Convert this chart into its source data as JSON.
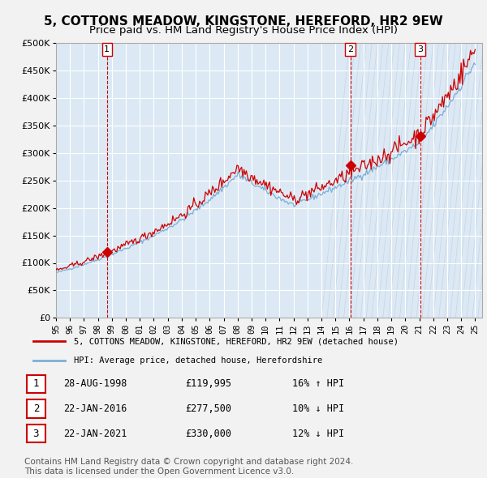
{
  "title": "5, COTTONS MEADOW, KINGSTONE, HEREFORD, HR2 9EW",
  "subtitle": "Price paid vs. HM Land Registry's House Price Index (HPI)",
  "title_fontsize": 11,
  "subtitle_fontsize": 9.5,
  "bg_color": "#dce9f5",
  "grid_color": "#ffffff",
  "red_line_color": "#cc0000",
  "blue_line_color": "#7bafd4",
  "sale_marker_color": "#cc0000",
  "vline_color": "#cc0000",
  "ylim": [
    0,
    500000
  ],
  "yticks": [
    0,
    50000,
    100000,
    150000,
    200000,
    250000,
    300000,
    350000,
    400000,
    450000,
    500000
  ],
  "ytick_labels": [
    "£0",
    "£50K",
    "£100K",
    "£150K",
    "£200K",
    "£250K",
    "£300K",
    "£350K",
    "£400K",
    "£450K",
    "£500K"
  ],
  "xmin": 1995.0,
  "xmax": 2025.5,
  "xtick_years": [
    1995,
    1996,
    1997,
    1998,
    1999,
    2000,
    2001,
    2002,
    2003,
    2004,
    2005,
    2006,
    2007,
    2008,
    2009,
    2010,
    2011,
    2012,
    2013,
    2014,
    2015,
    2016,
    2017,
    2018,
    2019,
    2020,
    2021,
    2022,
    2023,
    2024,
    2025
  ],
  "sale_dates": [
    1998.65,
    2016.06,
    2021.06
  ],
  "sale_prices": [
    119995,
    277500,
    330000
  ],
  "sale_labels": [
    "1",
    "2",
    "3"
  ],
  "legend_line1": "5, COTTONS MEADOW, KINGSTONE, HEREFORD, HR2 9EW (detached house)",
  "legend_line2": "HPI: Average price, detached house, Herefordshire",
  "table_rows": [
    [
      "1",
      "28-AUG-1998",
      "£119,995",
      "16% ↑ HPI"
    ],
    [
      "2",
      "22-JAN-2016",
      "£277,500",
      "10% ↓ HPI"
    ],
    [
      "3",
      "22-JAN-2021",
      "£330,000",
      "12% ↓ HPI"
    ]
  ],
  "footnote": "Contains HM Land Registry data © Crown copyright and database right 2024.\nThis data is licensed under the Open Government Licence v3.0.",
  "footnote_fontsize": 7.5
}
